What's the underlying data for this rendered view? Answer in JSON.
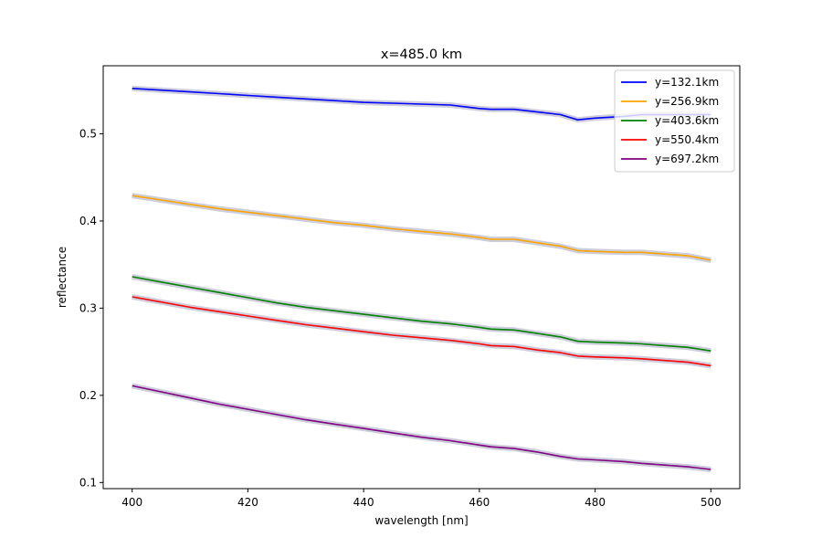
{
  "chart_data": {
    "type": "line",
    "title": "x=485.0 km",
    "xlabel": "wavelength [nm]",
    "ylabel": "reflectance",
    "xlim": [
      395,
      505
    ],
    "ylim": [
      0.093,
      0.578
    ],
    "xticks": [
      400,
      420,
      440,
      460,
      480,
      500
    ],
    "yticks": [
      0.1,
      0.2,
      0.3,
      0.4,
      0.5
    ],
    "xtick_labels": [
      "400",
      "420",
      "440",
      "460",
      "480",
      "500"
    ],
    "ytick_labels": [
      "0.1",
      "0.2",
      "0.3",
      "0.4",
      "0.5"
    ],
    "grid": false,
    "legend_position": "top-right",
    "band_color": "#b8b8cc",
    "x": [
      400,
      405,
      410,
      415,
      420,
      425,
      430,
      435,
      440,
      445,
      450,
      455,
      460,
      462,
      466,
      470,
      474,
      477,
      480,
      485,
      488,
      492,
      496,
      500
    ],
    "series": [
      {
        "name": "y=132.1km",
        "color": "#0000ff",
        "values": [
          0.552,
          0.55,
          0.548,
          0.546,
          0.544,
          0.542,
          0.54,
          0.538,
          0.536,
          0.535,
          0.534,
          0.533,
          0.529,
          0.528,
          0.528,
          0.525,
          0.522,
          0.516,
          0.518,
          0.52,
          0.522,
          0.522,
          0.522,
          0.522
        ]
      },
      {
        "name": "y=256.9km",
        "color": "#ffa500",
        "values": [
          0.429,
          0.424,
          0.419,
          0.414,
          0.41,
          0.406,
          0.402,
          0.398,
          0.395,
          0.391,
          0.388,
          0.385,
          0.381,
          0.379,
          0.379,
          0.375,
          0.371,
          0.366,
          0.365,
          0.364,
          0.364,
          0.362,
          0.36,
          0.355
        ]
      },
      {
        "name": "y=403.6km",
        "color": "#008000",
        "values": [
          0.336,
          0.33,
          0.324,
          0.318,
          0.312,
          0.306,
          0.301,
          0.297,
          0.293,
          0.289,
          0.285,
          0.282,
          0.278,
          0.276,
          0.275,
          0.271,
          0.267,
          0.262,
          0.261,
          0.26,
          0.259,
          0.257,
          0.255,
          0.251
        ]
      },
      {
        "name": "y=550.4km",
        "color": "#ff0000",
        "values": [
          0.313,
          0.307,
          0.301,
          0.296,
          0.291,
          0.286,
          0.281,
          0.277,
          0.273,
          0.269,
          0.266,
          0.263,
          0.259,
          0.257,
          0.256,
          0.252,
          0.249,
          0.245,
          0.244,
          0.243,
          0.242,
          0.24,
          0.238,
          0.234
        ]
      },
      {
        "name": "y=697.2km",
        "color": "#800080",
        "values": [
          0.211,
          0.204,
          0.197,
          0.19,
          0.184,
          0.178,
          0.172,
          0.167,
          0.162,
          0.157,
          0.152,
          0.148,
          0.143,
          0.141,
          0.139,
          0.135,
          0.13,
          0.127,
          0.126,
          0.124,
          0.122,
          0.12,
          0.118,
          0.115
        ]
      }
    ]
  }
}
